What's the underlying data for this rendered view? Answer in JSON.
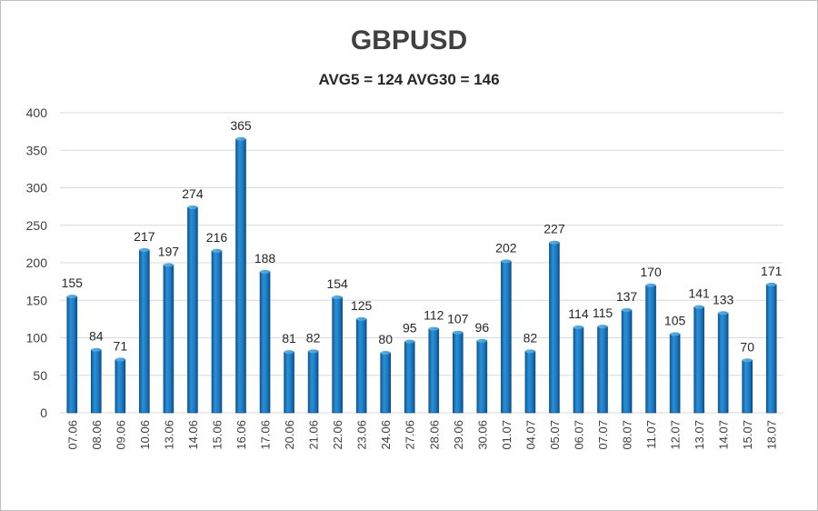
{
  "chart_data": {
    "type": "bar",
    "title": "GBPUSD",
    "subtitle": "AVG5 = 124 AVG30 = 146",
    "xlabel": "",
    "ylabel": "",
    "ylim": [
      0,
      400
    ],
    "yticks": [
      0,
      50,
      100,
      150,
      200,
      250,
      300,
      350,
      400
    ],
    "grid": true,
    "legend": "none",
    "bar_color": "#1f7fc8",
    "categories": [
      "07.06",
      "08.06",
      "09.06",
      "10.06",
      "13.06",
      "14.06",
      "15.06",
      "16.06",
      "17.06",
      "20.06",
      "21.06",
      "22.06",
      "23.06",
      "24.06",
      "27.06",
      "28.06",
      "29.06",
      "30.06",
      "01.07",
      "04.07",
      "05.07",
      "06.07",
      "07.07",
      "08.07",
      "11.07",
      "12.07",
      "13.07",
      "14.07",
      "15.07",
      "18.07"
    ],
    "values": [
      155,
      84,
      71,
      217,
      197,
      274,
      216,
      365,
      188,
      81,
      82,
      154,
      125,
      80,
      95,
      112,
      107,
      96,
      202,
      82,
      227,
      114,
      115,
      137,
      170,
      105,
      141,
      133,
      70,
      171
    ]
  }
}
